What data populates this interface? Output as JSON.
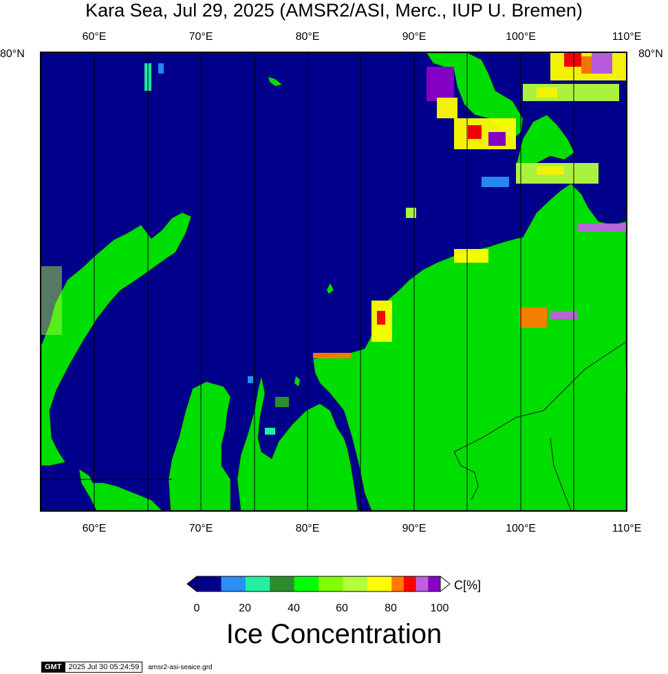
{
  "title": "Kara Sea, Jul 29, 2025 (AMSR2/ASI, Merc., IUP U. Bremen)",
  "axes": {
    "lon_labels": [
      "60°E",
      "70°E",
      "80°E",
      "90°E",
      "100°E",
      "110°E"
    ],
    "lat_left_label": "80°N",
    "lat_right_label": "80°N"
  },
  "colors": {
    "ocean": "#00008b",
    "land": "#00dd00",
    "frame": "#000000"
  },
  "colorbar": {
    "unit_label": "C[%]",
    "tick_labels": [
      "0",
      "20",
      "40",
      "60",
      "80",
      "100"
    ],
    "bins": [
      {
        "range": "0-10",
        "color": "#00008b"
      },
      {
        "range": "10-20",
        "color": "#2c8df5"
      },
      {
        "range": "20-30",
        "color": "#22f0a0"
      },
      {
        "range": "30-40",
        "color": "#2a8f2a"
      },
      {
        "range": "40-50",
        "color": "#00ff00"
      },
      {
        "range": "50-60",
        "color": "#7fff00"
      },
      {
        "range": "60-70",
        "color": "#b4ff3c"
      },
      {
        "range": "70-75",
        "color": "#ffff00"
      },
      {
        "range": "75-80",
        "color": "#ffff00"
      },
      {
        "range": "80-85",
        "color": "#ff7a00"
      },
      {
        "range": "85-90",
        "color": "#ff0000"
      },
      {
        "range": "90-95",
        "color": "#c060e0"
      },
      {
        "range": "95-100",
        "color": "#8b00c8"
      }
    ],
    "label": "Ice Concentration"
  },
  "footer": {
    "logo": "GMT",
    "timestamp": "2025 Jul 30 05:24:59",
    "filename": "amsr2-asi-seaice.grd"
  }
}
